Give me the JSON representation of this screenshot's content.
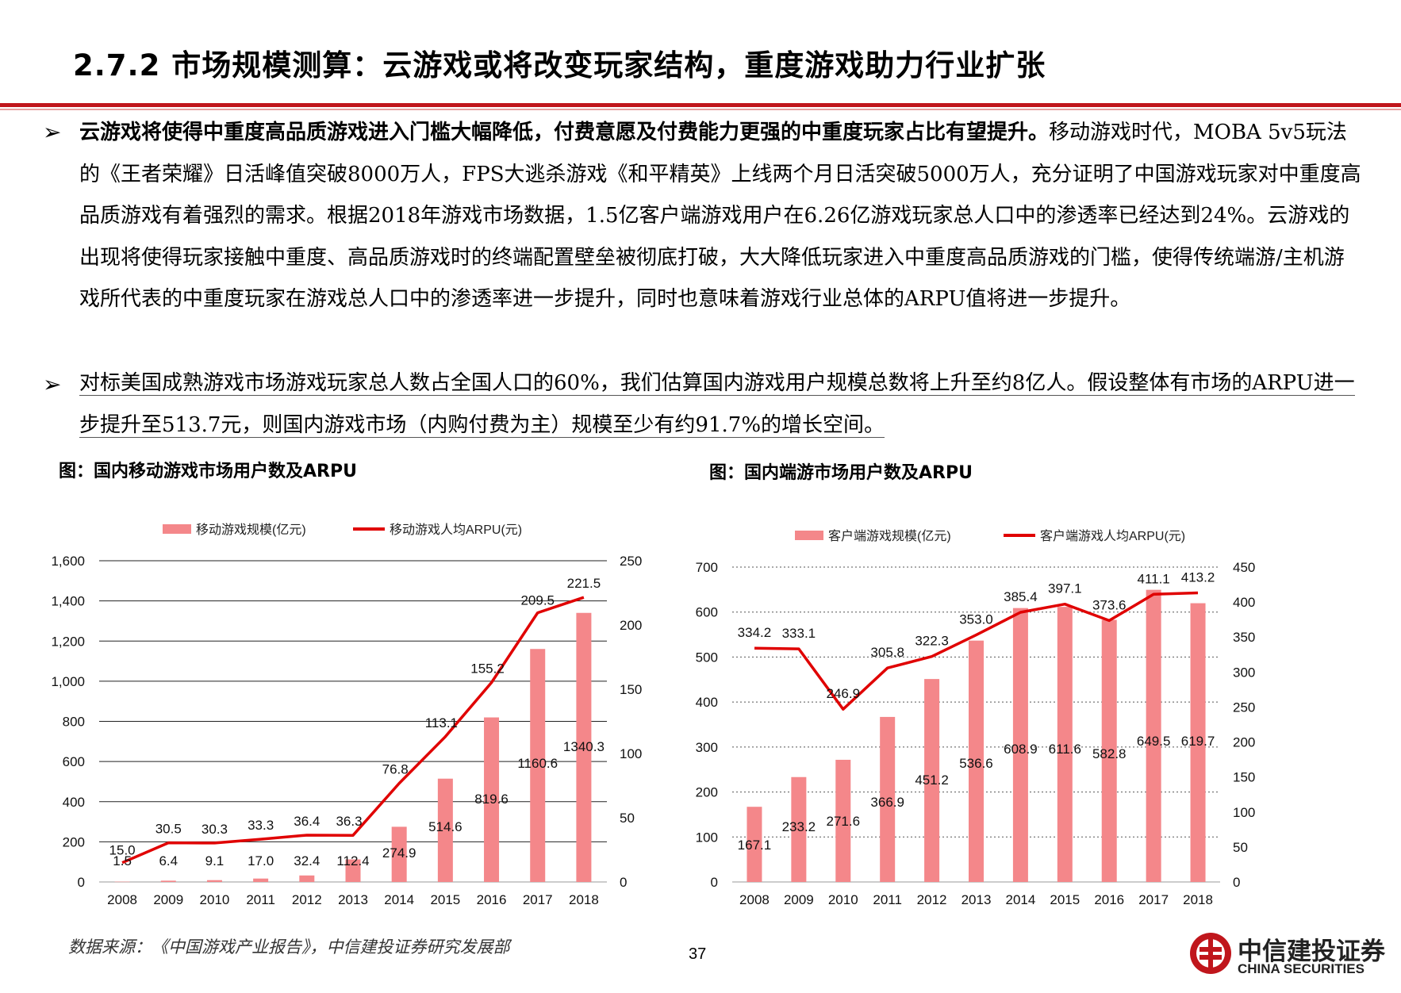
{
  "header": {
    "title": "2.7.2 市场规模测算：云游戏或将改变玩家结构，重度游戏助力行业扩张"
  },
  "body": {
    "bullet_symbol": "➢",
    "p1_bold": "云游戏将使得中重度高品质游戏进入门槛大幅降低，付费意愿及付费能力更强的中重度玩家占比有望提升。",
    "p1_rest": "移动游戏时代，MOBA 5v5玩法的《王者荣耀》日活峰值突破8000万人，FPS大逃杀游戏《和平精英》上线两个月日活突破5000万人，充分证明了中国游戏玩家对中重度高品质游戏有着强烈的需求。根据2018年游戏市场数据，1.5亿客户端游戏用户在6.26亿游戏玩家总人口中的渗透率已经达到24%。云游戏的出现将使得玩家接触中重度、高品质游戏时的终端配置壁垒被彻底打破，大大降低玩家进入中重度高品质游戏的门槛，使得传统端游/主机游戏所代表的中重度玩家在游戏总人口中的渗透率进一步提升，同时也意味着游戏行业总体的ARPU值将进一步提升。",
    "p2": "对标美国成熟游戏市场游戏玩家总人数占全国人口的60%，我们估算国内游戏用户规模总数将上升至约8亿人。假设整体有市场的ARPU进一步提升至513.7元，则国内游戏市场（内购付费为主）规模至少有约91.7%的增长空间。"
  },
  "captions": {
    "left": "图：国内移动游戏市场用户数及ARPU",
    "right": "图：国内端游市场用户数及ARPU"
  },
  "footer": {
    "source": "数据来源：《中国游戏产业报告》，中信建投证券研究发展部",
    "page": "37",
    "logo_cn": "中信建投证券",
    "logo_en": "CHINA SECURITIES"
  },
  "colors": {
    "bar": "#f4878a",
    "line": "#e00000",
    "accent": "#c0161c"
  },
  "chart_data": [
    {
      "type": "bar+line",
      "categories": [
        "2008",
        "2009",
        "2010",
        "2011",
        "2012",
        "2013",
        "2014",
        "2015",
        "2016",
        "2017",
        "2018"
      ],
      "series": [
        {
          "name": "移动游戏规模(亿元)",
          "type": "bar",
          "axis": "left",
          "values": [
            1.5,
            6.4,
            9.1,
            17.0,
            32.4,
            112.4,
            274.9,
            514.6,
            819.6,
            1160.6,
            1340.3
          ],
          "labels": [
            "1.5",
            "6.4",
            "9.1",
            "17.0",
            "32.4",
            "112.4",
            "274.9",
            "514.6",
            "819.6",
            "1160.6",
            "1340.3"
          ]
        },
        {
          "name": "移动游戏人均ARPU(元)",
          "type": "line",
          "axis": "right",
          "values": [
            15.0,
            30.5,
            30.3,
            33.3,
            36.4,
            36.3,
            76.8,
            113.1,
            155.2,
            209.5,
            221.5
          ],
          "labels": [
            "15.0",
            "30.5",
            "30.3",
            "33.3",
            "36.4",
            "36.3",
            "76.8",
            "113.1",
            "155.2",
            "209.5",
            "221.5"
          ]
        }
      ],
      "y_left": {
        "min": 0,
        "max": 1600,
        "ticks": [
          "0",
          "200",
          "400",
          "600",
          "800",
          "1,000",
          "1,200",
          "1,400",
          "1,600"
        ]
      },
      "y_right": {
        "min": 0,
        "max": 250,
        "ticks": [
          "0",
          "50",
          "100",
          "150",
          "200",
          "250"
        ]
      },
      "grid": "horizontal-solid",
      "legend": "top"
    },
    {
      "type": "bar+line",
      "categories": [
        "2008",
        "2009",
        "2010",
        "2011",
        "2012",
        "2013",
        "2014",
        "2015",
        "2016",
        "2017",
        "2018"
      ],
      "series": [
        {
          "name": "客户端游戏规模(亿元)",
          "type": "bar",
          "axis": "left",
          "values": [
            167.1,
            233.2,
            271.6,
            366.9,
            451.2,
            536.6,
            608.9,
            611.6,
            582.8,
            649.5,
            619.7
          ],
          "labels": [
            "167.1",
            "233.2",
            "271.6",
            "366.9",
            "451.2",
            "536.6",
            "608.9",
            "611.6",
            "582.8",
            "649.5",
            "619.7"
          ]
        },
        {
          "name": "客户端游戏人均ARPU(元)",
          "type": "line",
          "axis": "right",
          "values": [
            334.2,
            333.1,
            246.9,
            305.8,
            322.3,
            353.0,
            385.4,
            397.1,
            373.6,
            411.1,
            413.2
          ],
          "labels": [
            "334.2",
            "333.1",
            "246.9",
            "305.8",
            "322.3",
            "353.0",
            "385.4",
            "397.1",
            "373.6",
            "411.1",
            "413.2"
          ]
        }
      ],
      "y_left": {
        "min": 0,
        "max": 700,
        "ticks": [
          "0",
          "100",
          "200",
          "300",
          "400",
          "500",
          "600",
          "700"
        ]
      },
      "y_right": {
        "min": 0,
        "max": 450,
        "ticks": [
          "0",
          "50",
          "100",
          "150",
          "200",
          "250",
          "300",
          "350",
          "400",
          "450"
        ]
      },
      "grid": "horizontal-dotted",
      "legend": "top"
    }
  ]
}
